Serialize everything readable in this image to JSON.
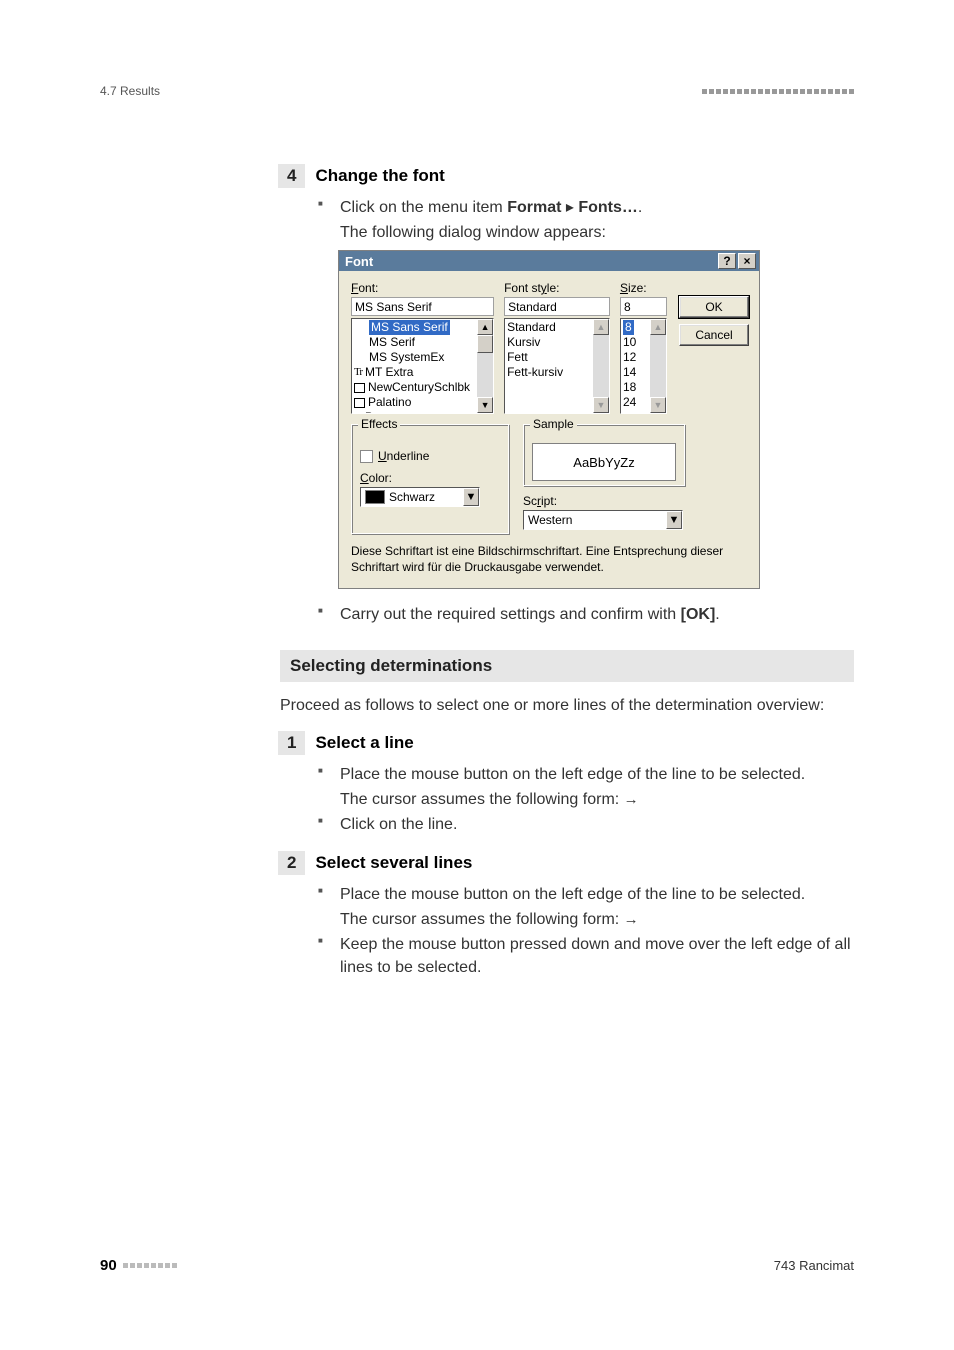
{
  "header": {
    "left": "4.7 Results"
  },
  "step4": {
    "number": "4",
    "title": "Change the font",
    "bullets": [
      {
        "pre": "Click on the menu item ",
        "bold1": "Format",
        "mid": " ▸ ",
        "bold2": "Fonts…",
        "post": ".",
        "follow": "The following dialog window appears:"
      }
    ],
    "after_bullets": [
      {
        "pre": "Carry out the required settings and confirm with ",
        "bold": "[OK]",
        "post": "."
      }
    ]
  },
  "dialog": {
    "title": "Font",
    "labels": {
      "font": "Font:",
      "style": "Font style:",
      "size": "Size:",
      "effects": "Effects",
      "underline": "Underline",
      "color": "Color:",
      "sample": "Sample",
      "script": "Script:"
    },
    "font_value": "MS Sans Serif",
    "font_list": [
      "MS Sans Serif",
      "MS Serif",
      "MS SystemEx",
      "MT Extra",
      "NewCenturySchlbk",
      "Palatino",
      "Party"
    ],
    "font_icons": [
      "",
      "",
      "",
      "tt",
      "pr",
      "pr",
      "tt"
    ],
    "font_selected_index": 0,
    "style_value": "Standard",
    "style_list": [
      "Standard",
      "Kursiv",
      "Fett",
      "Fett-kursiv"
    ],
    "size_value": "8",
    "size_list": [
      "8",
      "10",
      "12",
      "14",
      "18",
      "24"
    ],
    "size_selected_index": 0,
    "color_value": "Schwarz",
    "sample_text": "AaBbYyZz",
    "script_value": "Western",
    "ok": "OK",
    "cancel": "Cancel",
    "bottom_text": "Diese Schriftart ist eine Bildschirmschriftart. Eine Entsprechung dieser Schriftart wird für die Druckausgabe verwendet."
  },
  "section2": {
    "heading": "Selecting determinations",
    "intro": "Proceed as follows to select one or more lines of the determination overview:"
  },
  "step1": {
    "number": "1",
    "title": "Select a line",
    "bullets": [
      {
        "text": "Place the mouse button on the left edge of the line to be selected.",
        "follow": "The cursor assumes the following form: ",
        "arrow": true
      },
      {
        "text": "Click on the line."
      }
    ]
  },
  "step2": {
    "number": "2",
    "title": "Select several lines",
    "bullets": [
      {
        "text": "Place the mouse button on the left edge of the line to be selected.",
        "follow": "The cursor assumes the following form: ",
        "arrow": true
      },
      {
        "text": "Keep the mouse button pressed down and move over the left edge of all lines to be selected."
      }
    ]
  },
  "footer": {
    "page": "90",
    "product": "743 Rancimat"
  },
  "colors": {
    "titlebar": "#5a7b9c",
    "dialog_bg": "#ece9d8",
    "selection": "#316ac5",
    "grey_box": "#e6e6e6"
  }
}
